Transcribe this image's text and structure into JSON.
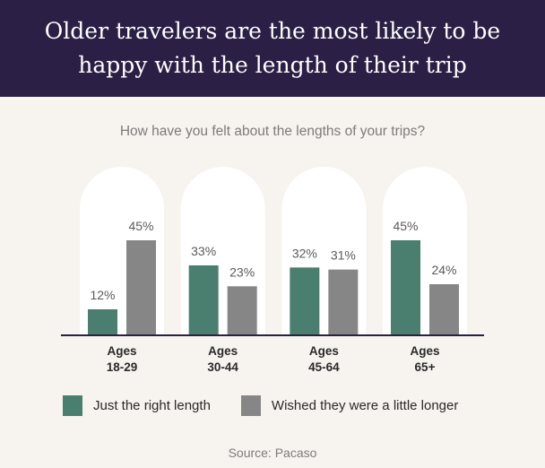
{
  "header": {
    "title": "Older travelers are the most likely to be happy with the length of their trip"
  },
  "colors": {
    "header_bg": "#2b1f45",
    "background": "#f7f3ef",
    "pill": "#ffffff",
    "just_right": "#4a7f6f",
    "longer": "#868686",
    "axis": "#2b1f45"
  },
  "chart_data": {
    "type": "bar",
    "title": "Older travelers are the most likely to be happy with the length of their trip",
    "subtitle": "How have you felt about the lengths of your trips?",
    "categories": [
      [
        "Ages",
        "18-29"
      ],
      [
        "Ages",
        "30-44"
      ],
      [
        "Ages",
        "45-64"
      ],
      [
        "Ages",
        "65+"
      ]
    ],
    "series": [
      {
        "name": "Just the right length",
        "values": [
          12,
          33,
          32,
          45
        ],
        "color": "#4a7f6f"
      },
      {
        "name": "Wished they were a little longer",
        "values": [
          45,
          23,
          31,
          24
        ],
        "color": "#868686"
      }
    ],
    "value_suffix": "%",
    "ylim": [
      0,
      45
    ],
    "grid": false,
    "legend_position": "bottom"
  },
  "source": "Source: Pacaso"
}
